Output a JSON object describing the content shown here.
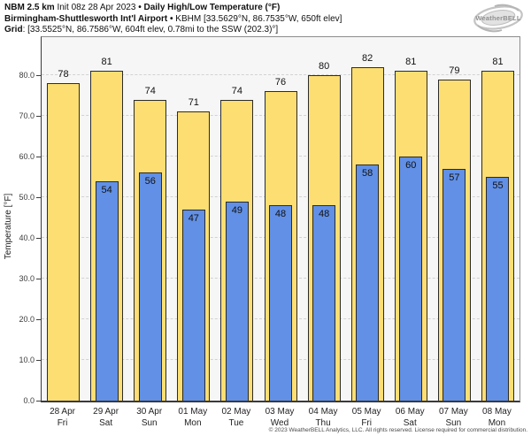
{
  "header": {
    "lines": [
      {
        "name": "title-line",
        "segments": [
          {
            "text": "NBM 2.5 km",
            "bold": true
          },
          {
            "text": " Init 08z 28 Apr 2023 ",
            "bold": false
          },
          {
            "text": "• ",
            "bold": true
          },
          {
            "text": "Daily High/Low Temperature (°F)",
            "bold": true
          }
        ]
      },
      {
        "name": "station-line",
        "segments": [
          {
            "text": "Birmingham-Shuttlesworth Int'l Airport",
            "bold": true
          },
          {
            "text": " • ",
            "bold": true
          },
          {
            "text": "KBHM [33.5629°N, 86.7535°W, 650ft elev]",
            "bold": false
          }
        ]
      },
      {
        "name": "grid-line",
        "segments": [
          {
            "text": "Grid",
            "bold": true
          },
          {
            "text": ": [33.5525°N, 86.7586°W, 604ft elev, 0.78mi to the SSW (202.3)°]",
            "bold": false
          }
        ]
      }
    ]
  },
  "logo": {
    "text": "WeatherBELL"
  },
  "chart_data": {
    "type": "bar",
    "title": "Daily High/Low Temperature (°F)",
    "ylabel": "Temperature [°F]",
    "ylim": [
      0,
      90
    ],
    "yticks": [
      "0.0",
      "10.0",
      "20.0",
      "30.0",
      "40.0",
      "50.0",
      "60.0",
      "70.0",
      "80.0"
    ],
    "grid": "horizontal-dashed",
    "legend": "none",
    "categories": [
      {
        "date": "28 Apr",
        "day": "Fri"
      },
      {
        "date": "29 Apr",
        "day": "Sat"
      },
      {
        "date": "30 Apr",
        "day": "Sun"
      },
      {
        "date": "01 May",
        "day": "Mon"
      },
      {
        "date": "02 May",
        "day": "Tue"
      },
      {
        "date": "03 May",
        "day": "Wed"
      },
      {
        "date": "04 May",
        "day": "Thu"
      },
      {
        "date": "05 May",
        "day": "Fri"
      },
      {
        "date": "06 May",
        "day": "Sat"
      },
      {
        "date": "07 May",
        "day": "Sun"
      },
      {
        "date": "08 May",
        "day": "Mon"
      }
    ],
    "series": [
      {
        "name": "High",
        "color": "#fcde73",
        "values": [
          78,
          81,
          74,
          71,
          74,
          76,
          80,
          82,
          81,
          79,
          81
        ]
      },
      {
        "name": "Low",
        "color": "#6190e6",
        "values": [
          null,
          54,
          56,
          47,
          49,
          48,
          48,
          58,
          60,
          57,
          55
        ]
      }
    ]
  },
  "footer": "© 2023 WeatherBELL Analytics, LLC. All rights reserved. License required for commercial distribution."
}
